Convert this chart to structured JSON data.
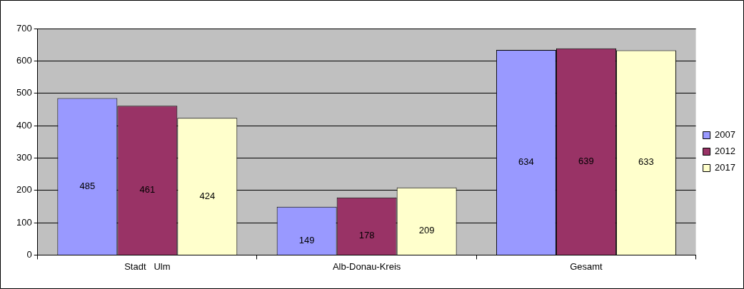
{
  "chart_data": {
    "type": "bar",
    "categories": [
      "Stadt   Ulm",
      "Alb-Donau-Kreis",
      "Gesamt"
    ],
    "series": [
      {
        "name": "2007",
        "color": "#9999ff",
        "values": [
          485,
          149,
          634
        ]
      },
      {
        "name": "2012",
        "color": "#993366",
        "values": [
          461,
          178,
          639
        ]
      },
      {
        "name": "2017",
        "color": "#ffffcc",
        "values": [
          424,
          209,
          633
        ]
      }
    ],
    "ylim": [
      0,
      700
    ],
    "yticks": [
      0,
      100,
      200,
      300,
      400,
      500,
      600,
      700
    ],
    "grid": "y",
    "legend": "right",
    "data_labels": true
  }
}
